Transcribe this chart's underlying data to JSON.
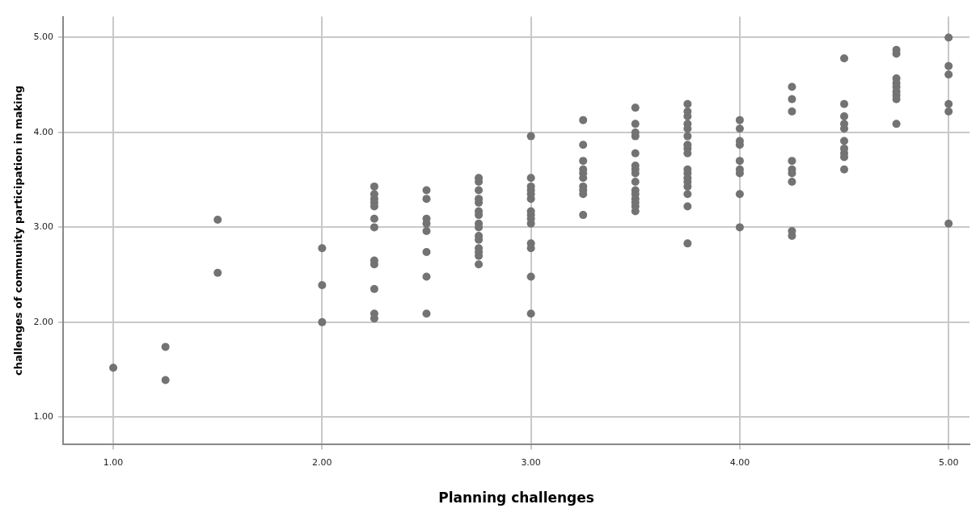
{
  "chart_data": {
    "type": "scatter",
    "xlabel": "Planning challenges",
    "ylabel": "challenges of community participation in making",
    "xlim": [
      0.76,
      5.1
    ],
    "ylim": [
      0.71,
      5.22
    ],
    "xticks": [
      {
        "value": 1,
        "label": "1.00"
      },
      {
        "value": 2,
        "label": "2.00"
      },
      {
        "value": 3,
        "label": "3.00"
      },
      {
        "value": 4,
        "label": "4.00"
      },
      {
        "value": 5,
        "label": "5.00"
      }
    ],
    "yticks": [
      {
        "value": 1,
        "label": "1.00"
      },
      {
        "value": 2,
        "label": "2.00"
      },
      {
        "value": 3,
        "label": "3.00"
      },
      {
        "value": 4,
        "label": "4.00"
      },
      {
        "value": 5,
        "label": "5.00"
      }
    ],
    "grid": true,
    "marker": "circle",
    "legend": false,
    "series": [
      {
        "color": "#737373",
        "x": [
          1,
          1.25,
          1.25,
          1.5,
          1.5,
          2,
          2,
          2,
          2.25,
          2.25,
          2.25,
          2.25,
          2.25,
          2.25,
          2.25,
          2.25,
          2.25,
          2.25,
          2.25,
          2.25,
          2.5,
          2.5,
          2.5,
          2.5,
          2.5,
          2.5,
          2.5,
          2.5,
          2.75,
          2.75,
          2.75,
          2.75,
          2.75,
          2.75,
          2.75,
          2.75,
          2.75,
          2.75,
          2.75,
          2.75,
          2.75,
          2.75,
          2.75,
          3,
          3,
          3,
          3,
          3,
          3,
          3,
          3,
          3,
          3,
          3,
          3,
          3,
          3,
          3.25,
          3.25,
          3.25,
          3.25,
          3.25,
          3.25,
          3.25,
          3.25,
          3.25,
          3.25,
          3.5,
          3.5,
          3.5,
          3.5,
          3.5,
          3.5,
          3.5,
          3.5,
          3.5,
          3.5,
          3.5,
          3.5,
          3.5,
          3.5,
          3.5,
          3.75,
          3.75,
          3.75,
          3.75,
          3.75,
          3.75,
          3.75,
          3.75,
          3.75,
          3.75,
          3.75,
          3.75,
          3.75,
          3.75,
          3.75,
          3.75,
          3.75,
          4,
          4,
          4,
          4,
          4,
          4,
          4,
          4,
          4,
          4.25,
          4.25,
          4.25,
          4.25,
          4.25,
          4.25,
          4.25,
          4.25,
          4.25,
          4.5,
          4.5,
          4.5,
          4.5,
          4.5,
          4.5,
          4.5,
          4.5,
          4.5,
          4.5,
          4.75,
          4.75,
          4.75,
          4.75,
          4.75,
          4.75,
          4.75,
          4.75,
          4.75,
          5,
          5,
          5,
          5,
          5,
          5
        ],
        "values": [
          1.52,
          1.74,
          1.39,
          3.08,
          2.52,
          2.78,
          2.39,
          2.0,
          3.43,
          3.35,
          3.3,
          3.26,
          3.22,
          3.09,
          3.0,
          2.65,
          2.61,
          2.35,
          2.09,
          2.04,
          3.39,
          3.3,
          3.09,
          3.04,
          2.96,
          2.74,
          2.48,
          2.09,
          3.52,
          3.48,
          3.39,
          3.3,
          3.26,
          3.17,
          3.13,
          3.04,
          3.0,
          2.91,
          2.87,
          2.78,
          2.74,
          2.7,
          2.61,
          3.96,
          3.52,
          3.43,
          3.39,
          3.35,
          3.3,
          3.17,
          3.13,
          3.09,
          3.04,
          2.83,
          2.78,
          2.48,
          2.09,
          4.13,
          3.87,
          3.7,
          3.61,
          3.57,
          3.52,
          3.43,
          3.39,
          3.35,
          3.13,
          4.26,
          4.09,
          4.0,
          3.96,
          3.78,
          3.65,
          3.61,
          3.57,
          3.48,
          3.39,
          3.35,
          3.3,
          3.26,
          3.22,
          3.17,
          4.3,
          4.22,
          4.17,
          4.09,
          4.04,
          3.96,
          3.87,
          3.83,
          3.78,
          3.61,
          3.57,
          3.52,
          3.48,
          3.43,
          3.35,
          3.22,
          2.83,
          4.13,
          4.04,
          3.91,
          3.87,
          3.7,
          3.61,
          3.57,
          3.35,
          3.0,
          4.48,
          4.35,
          4.22,
          3.7,
          3.61,
          3.57,
          3.48,
          2.96,
          2.91,
          4.78,
          4.3,
          4.17,
          4.09,
          4.04,
          3.91,
          3.83,
          3.78,
          3.74,
          3.61,
          4.87,
          4.83,
          4.57,
          4.52,
          4.48,
          4.43,
          4.39,
          4.35,
          4.09,
          5.0,
          4.7,
          4.61,
          4.3,
          4.22,
          3.04
        ]
      }
    ]
  }
}
